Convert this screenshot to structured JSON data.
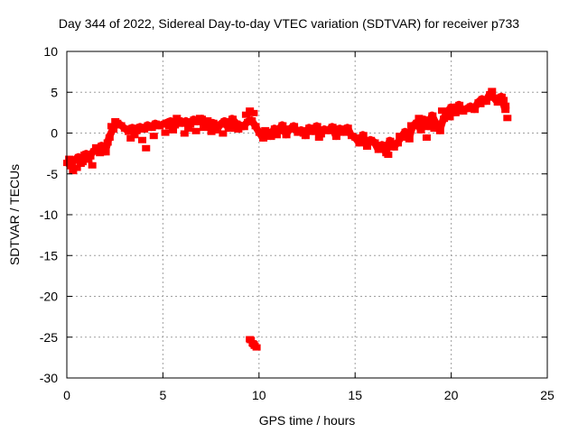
{
  "chart_data": {
    "type": "scatter",
    "title": "Day 344 of 2022, Sidereal Day-to-day VTEC variation (SDTVAR) for receiver p733",
    "xlabel": "GPS time / hours",
    "ylabel": "SDTVAR / TECUs",
    "xlim": [
      0,
      25
    ],
    "ylim": [
      -30,
      10
    ],
    "xticks": [
      0,
      5,
      10,
      15,
      20,
      25
    ],
    "yticks": [
      -30,
      -25,
      -20,
      -15,
      -10,
      -5,
      0,
      5,
      10
    ],
    "grid": true,
    "series": [
      {
        "name": "SDTVAR",
        "color": "#ff0000",
        "x": [
          0.0,
          0.2,
          0.4,
          0.6,
          0.8,
          1.0,
          1.2,
          1.4,
          1.6,
          1.8,
          2.0,
          2.2,
          2.4,
          2.6,
          2.8,
          3.0,
          3.2,
          3.4,
          3.6,
          3.8,
          4.0,
          4.2,
          4.4,
          4.6,
          4.8,
          5.0,
          5.2,
          5.4,
          5.6,
          5.8,
          6.0,
          6.2,
          6.4,
          6.6,
          6.8,
          7.0,
          7.2,
          7.4,
          7.6,
          7.8,
          8.0,
          8.2,
          8.4,
          8.6,
          8.8,
          9.0,
          9.2,
          9.4,
          9.6,
          9.8,
          10.0,
          10.2,
          10.4,
          10.6,
          10.8,
          11.0,
          11.2,
          11.4,
          11.6,
          11.8,
          12.0,
          12.2,
          12.4,
          12.6,
          12.8,
          13.0,
          13.2,
          13.4,
          13.6,
          13.8,
          14.0,
          14.2,
          14.4,
          14.6,
          14.8,
          15.0,
          15.2,
          15.4,
          15.6,
          15.8,
          16.0,
          16.2,
          16.4,
          16.6,
          16.8,
          17.0,
          17.2,
          17.4,
          17.6,
          17.8,
          18.0,
          18.2,
          18.4,
          18.6,
          18.8,
          19.0,
          19.2,
          19.4,
          19.6,
          19.8,
          20.0,
          20.2,
          20.4,
          20.6,
          20.8,
          21.0,
          21.2,
          21.4,
          21.6,
          21.8,
          22.0,
          22.2,
          22.4,
          22.6,
          22.8,
          0.1,
          0.3,
          0.5,
          0.7,
          0.9,
          1.1,
          1.3,
          1.5,
          1.7,
          1.9,
          2.1,
          2.3,
          2.5,
          3.3,
          3.5,
          3.7,
          3.9,
          4.1,
          4.3,
          4.5,
          4.7,
          5.1,
          5.3,
          5.5,
          5.7,
          6.1,
          6.3,
          6.7,
          6.9,
          7.1,
          7.3,
          7.5,
          7.7,
          8.1,
          8.3,
          8.7,
          8.9,
          9.3,
          9.5,
          9.7,
          10.3,
          10.9,
          11.5,
          12.3,
          13.1,
          13.9,
          14.5,
          15.1,
          15.7,
          16.3,
          16.7,
          17.3,
          17.9,
          18.3,
          18.7,
          19.1,
          19.5,
          19.9,
          20.3,
          20.9,
          21.5,
          22.1,
          22.7,
          22.9,
          22.8,
          9.55,
          9.65,
          9.75,
          9.85,
          9.5,
          9.7
        ],
        "y": [
          -3.6,
          -4.0,
          -3.3,
          -2.9,
          -3.5,
          -2.5,
          -2.8,
          -2.2,
          -1.9,
          -1.5,
          -2.3,
          -0.5,
          0.5,
          1.3,
          1.0,
          0.6,
          0.2,
          0.7,
          0.3,
          0.8,
          0.5,
          1.0,
          0.7,
          1.2,
          0.9,
          1.1,
          1.3,
          1.5,
          1.0,
          1.6,
          1.2,
          1.5,
          1.1,
          1.7,
          1.4,
          1.8,
          1.2,
          0.9,
          1.3,
          0.4,
          1.1,
          1.5,
          0.6,
          1.8,
          1.2,
          1.0,
          0.8,
          1.4,
          1.6,
          0.9,
          0.1,
          -0.6,
          0.2,
          -0.4,
          0.6,
          0.3,
          1.0,
          -0.2,
          0.5,
          0.9,
          0.1,
          0.4,
          -0.3,
          0.7,
          0.2,
          0.9,
          -0.1,
          0.5,
          0.3,
          0.8,
          -0.4,
          0.6,
          0.1,
          0.7,
          -0.3,
          -0.5,
          -1.2,
          -0.2,
          -1.6,
          -0.8,
          -1.1,
          -2.0,
          -1.4,
          -2.4,
          -0.9,
          -1.7,
          -1.2,
          -0.5,
          0.2,
          -0.7,
          0.9,
          1.3,
          0.4,
          1.7,
          0.8,
          2.2,
          1.2,
          0.3,
          1.8,
          2.6,
          3.2,
          2.5,
          3.5,
          2.7,
          3.0,
          3.3,
          2.9,
          3.8,
          4.2,
          3.9,
          4.8,
          4.4,
          3.8,
          4.5,
          2.9,
          -3.1,
          -4.6,
          -4.2,
          -3.7,
          -2.6,
          -3.2,
          -3.9,
          -1.7,
          -2.4,
          -2.0,
          -1.1,
          0.9,
          1.5,
          -0.6,
          -0.2,
          0.5,
          -0.8,
          -1.8,
          0.8,
          -0.3,
          1.0,
          0.1,
          0.9,
          0.4,
          1.9,
          0.0,
          0.6,
          0.3,
          1.9,
          0.7,
          1.6,
          0.2,
          1.0,
          0.0,
          1.5,
          0.6,
          0.5,
          2.3,
          2.8,
          2.5,
          0.4,
          -0.2,
          0.6,
          0.0,
          -0.5,
          0.6,
          0.2,
          -0.6,
          -1.0,
          -1.6,
          -2.6,
          -0.3,
          1.0,
          1.9,
          -0.5,
          0.6,
          2.8,
          2.0,
          3.3,
          3.1,
          3.6,
          5.2,
          4.1,
          1.9,
          3.4,
          -25.3,
          -25.7,
          -26.0,
          -26.2,
          -25.2,
          -25.8
        ]
      }
    ]
  }
}
